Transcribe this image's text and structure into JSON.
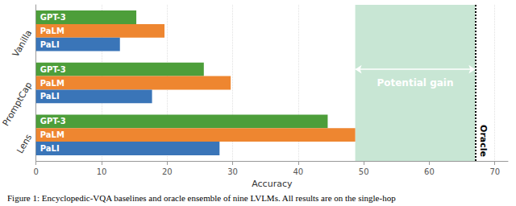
{
  "chart_data": {
    "type": "bar",
    "orientation": "horizontal",
    "categories": [
      "Vanilla",
      "PromptCap",
      "Lens"
    ],
    "series": [
      {
        "name": "GPT-3",
        "color": "#4d9e3a",
        "values": [
          15.3,
          25.6,
          44.5
        ]
      },
      {
        "name": "PaLM",
        "color": "#ee8630",
        "values": [
          19.6,
          29.7,
          48.7
        ]
      },
      {
        "name": "PaLI",
        "color": "#3a75b8",
        "values": [
          12.8,
          17.7,
          28.0
        ]
      }
    ],
    "x_label": "Accuracy",
    "xlim": [
      0,
      72
    ],
    "xticks": [
      0,
      10,
      20,
      30,
      40,
      50,
      60,
      70
    ],
    "grid": true,
    "annotations": [
      {
        "text": "Potential gain",
        "from": 48.7,
        "to": 67,
        "color": "#c8e6d4"
      },
      {
        "text": "Oracle",
        "value": 67
      }
    ],
    "caption": "Figure 1: Encyclopedic-VQA baselines and oracle ensemble of nine LVLMs. All results are on the single-hop"
  }
}
